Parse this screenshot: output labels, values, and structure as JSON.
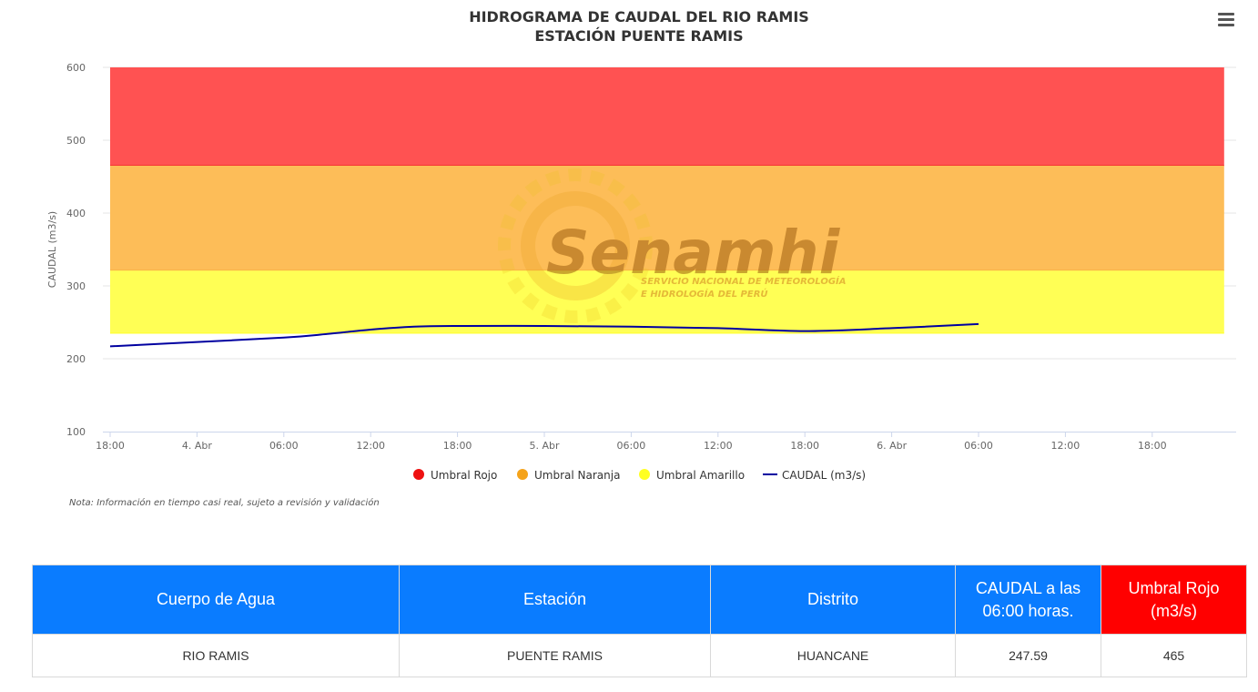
{
  "menu": {
    "icon": "hamburger-menu-icon"
  },
  "chart_data": {
    "type": "area",
    "title": [
      "HIDROGRAMA DE CAUDAL DEL RIO RAMIS",
      "ESTACIÓN PUENTE RAMIS"
    ],
    "ylabel": "CAUDAL (m3/s)",
    "ylim": [
      100,
      600
    ],
    "yticks": [
      100,
      200,
      300,
      400,
      500,
      600
    ],
    "xlim_hours": [
      0,
      78
    ],
    "xticks": [
      {
        "h": 0,
        "label": "18:00"
      },
      {
        "h": 6,
        "label": "4. Abr"
      },
      {
        "h": 12,
        "label": "06:00"
      },
      {
        "h": 18,
        "label": "12:00"
      },
      {
        "h": 24,
        "label": "18:00"
      },
      {
        "h": 30,
        "label": "5. Abr"
      },
      {
        "h": 36,
        "label": "06:00"
      },
      {
        "h": 42,
        "label": "12:00"
      },
      {
        "h": 48,
        "label": "18:00"
      },
      {
        "h": 54,
        "label": "6. Abr"
      },
      {
        "h": 60,
        "label": "06:00"
      },
      {
        "h": 66,
        "label": "12:00"
      },
      {
        "h": 72,
        "label": "18:00"
      }
    ],
    "bands": [
      {
        "name": "Umbral Rojo",
        "from": 465,
        "to": 600,
        "color": "#ff5252",
        "legend_color": "#ee1111"
      },
      {
        "name": "Umbral Naranja",
        "from": 321,
        "to": 465,
        "color": "#fdbd58",
        "legend_color": "#f5a31a"
      },
      {
        "name": "Umbral Amarillo",
        "from": 235,
        "to": 321,
        "color": "#ffff55",
        "legend_color": "#ffff22"
      }
    ],
    "series": [
      {
        "name": "CAUDAL (m3/s)",
        "color": "#0000a0",
        "points": [
          {
            "h": 0,
            "y": 217
          },
          {
            "h": 6,
            "y": 223
          },
          {
            "h": 12,
            "y": 229
          },
          {
            "h": 15,
            "y": 234
          },
          {
            "h": 18,
            "y": 240
          },
          {
            "h": 21,
            "y": 244
          },
          {
            "h": 24,
            "y": 245
          },
          {
            "h": 30,
            "y": 245
          },
          {
            "h": 36,
            "y": 244
          },
          {
            "h": 42,
            "y": 242
          },
          {
            "h": 48,
            "y": 238
          },
          {
            "h": 54,
            "y": 242
          },
          {
            "h": 60,
            "y": 247.59
          }
        ]
      }
    ],
    "legend": [
      "Umbral Rojo",
      "Umbral Naranja",
      "Umbral Amarillo",
      "CAUDAL (m3/s)"
    ],
    "legend_position": "bottom-center",
    "note": "Nota: Información en tiempo casi real, sujeto a revisión y validación"
  },
  "watermark": {
    "logo_text": "Senamhi",
    "line1": "SERVICIO NACIONAL DE METEOROLOGÍA",
    "line2": "E HIDROLOGÍA DEL PERÚ"
  },
  "table": {
    "headers": [
      "Cuerpo de Agua",
      "Estación",
      "Distrito",
      "CAUDAL a las 06:00 horas.",
      "Umbral Rojo (m3/s)"
    ],
    "rows": [
      [
        "RIO RAMIS",
        "PUENTE RAMIS",
        "HUANCANE",
        "247.59",
        "465"
      ]
    ]
  }
}
